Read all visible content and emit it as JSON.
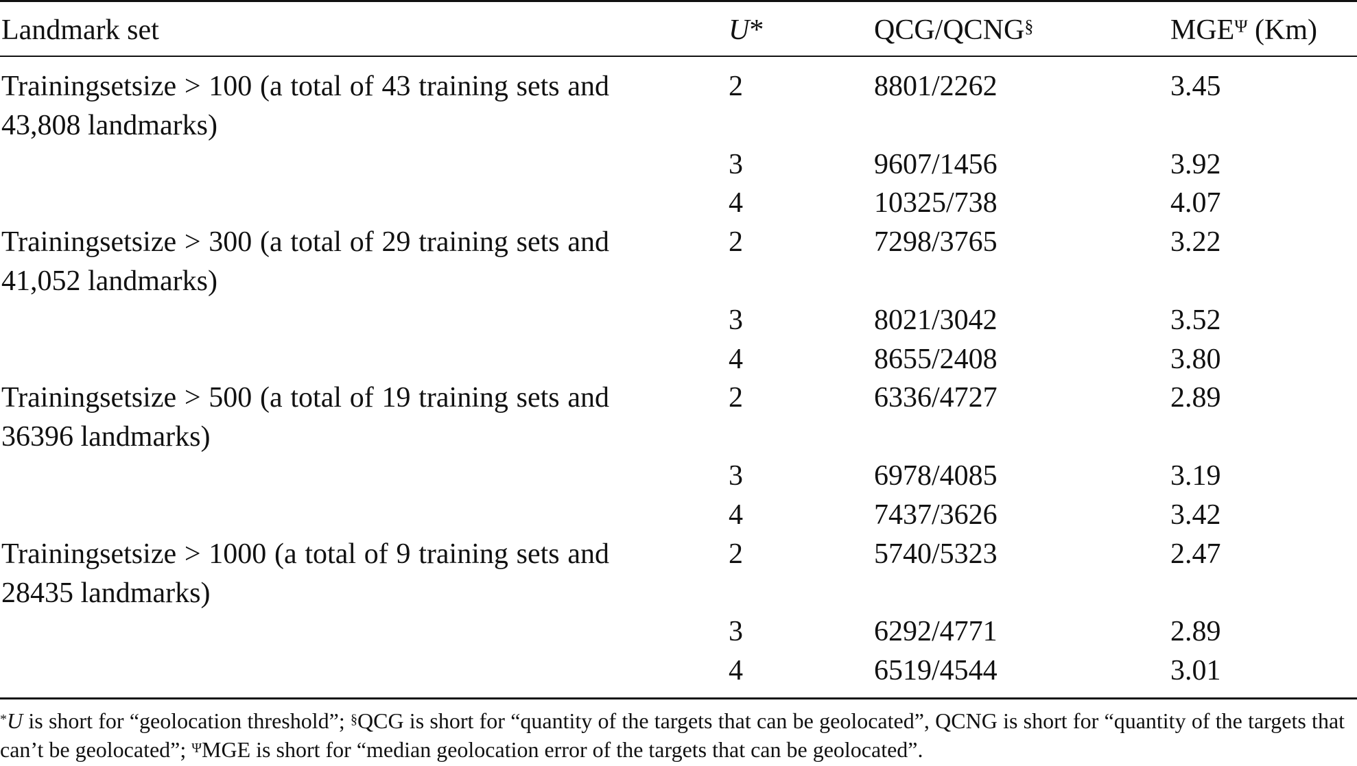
{
  "header": {
    "landmark": "Landmark set",
    "u": "U",
    "u_mark": "*",
    "qcg": "QCG/QCNG",
    "qcg_mark": "§",
    "mge": "MGE",
    "mge_mark": "Ψ",
    "mge_unit": "(Km)"
  },
  "groups": [
    {
      "label": "Trainingsetsize > 100 (a total of 43 training sets and 43,808 landmarks)",
      "rows": [
        [
          "2",
          "8801/2262",
          "3.45"
        ],
        [
          "3",
          "9607/1456",
          "3.92"
        ],
        [
          "4",
          "10325/738",
          "4.07"
        ]
      ]
    },
    {
      "label": "Trainingsetsize > 300 (a total of 29 training sets and 41,052 landmarks)",
      "rows": [
        [
          "2",
          "7298/3765",
          "3.22"
        ],
        [
          "3",
          "8021/3042",
          "3.52"
        ],
        [
          "4",
          "8655/2408",
          "3.80"
        ]
      ]
    },
    {
      "label": "Trainingsetsize > 500 (a total of 19 training sets and 36396 landmarks)",
      "rows": [
        [
          "2",
          "6336/4727",
          "2.89"
        ],
        [
          "3",
          "6978/4085",
          "3.19"
        ],
        [
          "4",
          "7437/3626",
          "3.42"
        ]
      ]
    },
    {
      "label": "Trainingsetsize > 1000 (a total of 9 training sets and 28435 landmarks)",
      "rows": [
        [
          "2",
          "5740/5323",
          "2.47"
        ],
        [
          "3",
          "6292/4771",
          "2.89"
        ],
        [
          "4",
          "6519/4544",
          "3.01"
        ]
      ]
    }
  ],
  "footnote": [
    {
      "mark": "*",
      "term": "U",
      "text": "is short for “geolocation threshold”;"
    },
    {
      "mark": "§",
      "text": "QCG is short for “quantity of the targets that can be geolocated”, QCNG is short for “quantity of the targets that can’t be geolocated”;"
    },
    {
      "mark": "Ψ",
      "text": "MGE is short for “median geolocation error of the targets that can be geolocated”."
    }
  ]
}
